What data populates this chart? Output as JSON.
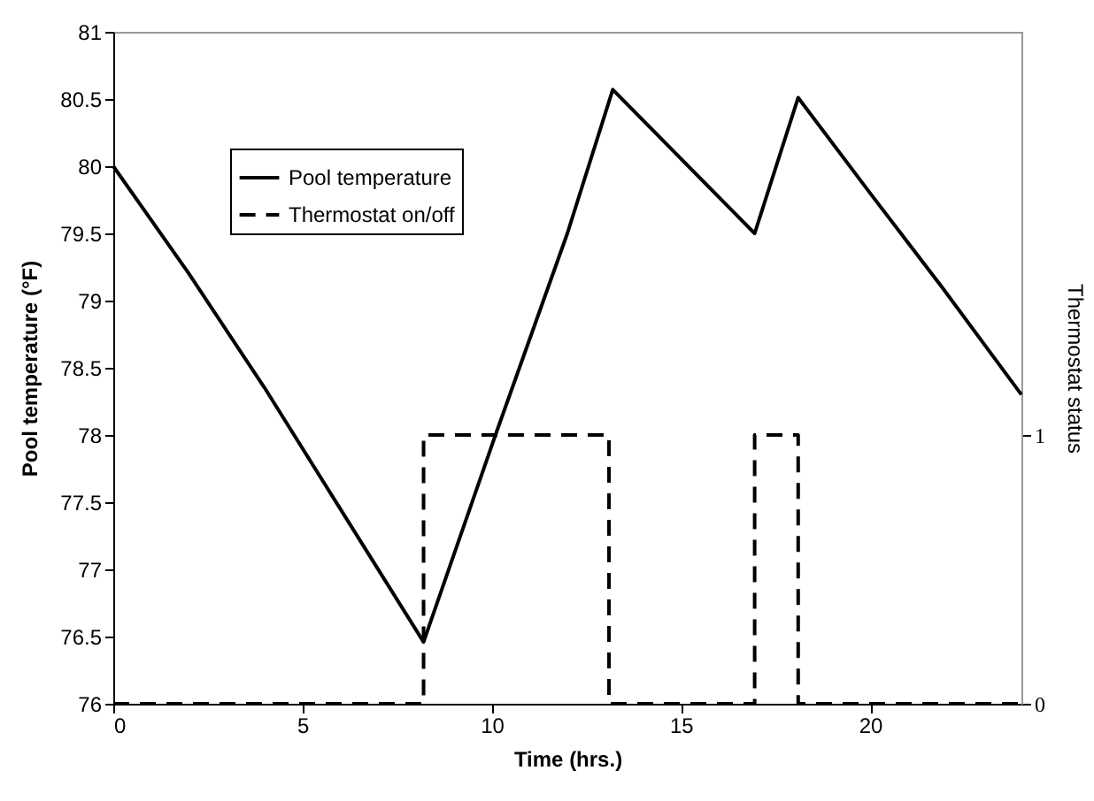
{
  "chart_data": {
    "type": "line",
    "xlabel": "Time (hrs.)",
    "ylabel": "Pool temperature (°F)",
    "y2label": "Thermostat status",
    "xlim": [
      0,
      24
    ],
    "xticks": [
      0,
      5,
      10,
      15,
      20
    ],
    "ylim": [
      76,
      81
    ],
    "yticks": [
      76,
      76.5,
      77,
      77.5,
      78,
      78.5,
      79,
      79.5,
      80,
      80.5,
      81
    ],
    "y2lim": [
      0,
      2.5
    ],
    "y2ticks": [
      0,
      1
    ],
    "legend": "top left",
    "grid": false,
    "series": [
      {
        "name": "Pool temperature",
        "type": "line",
        "color": "#000000",
        "line_style": "solid",
        "x": [
          0,
          2,
          4,
          6,
          8.2,
          10.1,
          12,
          13.2,
          16.95,
          18.1,
          20,
          21.9,
          24
        ],
        "values": [
          80,
          79.2,
          78.35,
          77.45,
          76.46,
          78,
          79.5,
          80.57,
          79.5,
          80.51,
          79.8,
          79.1,
          78.3
        ]
      },
      {
        "name": "Thermostat on/off",
        "type": "step",
        "axis": "y2",
        "color": "#000000",
        "line_style": "dashed",
        "x": [
          0,
          8.2,
          13.1,
          16.95,
          18.1,
          24
        ],
        "values": [
          0,
          1,
          0,
          1,
          0,
          0
        ]
      }
    ]
  }
}
